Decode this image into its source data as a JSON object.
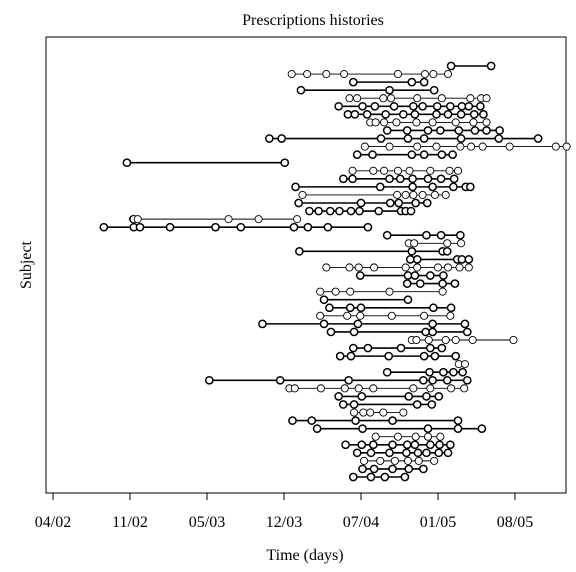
{
  "chart_data": {
    "type": "scatter",
    "title": "Prescriptions histories",
    "xlabel": "Time (days)",
    "ylabel": "Subject",
    "x_ticks": [
      "04/02",
      "11/02",
      "05/03",
      "12/03",
      "07/04",
      "01/05",
      "08/05"
    ],
    "xlim": [
      -0.05,
      7.4
    ],
    "ylim": [
      0,
      55
    ],
    "grid": false,
    "legend": "none",
    "marker": "open-circle",
    "colors": {
      "line": "#000000",
      "marker_fill": "#ffffff",
      "marker_stroke": "#000000"
    },
    "series": [
      {
        "y": 54,
        "x": [
          5.17,
          5.69
        ]
      },
      {
        "y": 53,
        "x": [
          3.1,
          3.3,
          3.55,
          3.78,
          4.48,
          4.83,
          4.94,
          5.13
        ]
      },
      {
        "y": 52,
        "x": [
          3.9,
          4.66,
          4.82
        ]
      },
      {
        "y": 51,
        "x": [
          3.22,
          4.37,
          4.95
        ]
      },
      {
        "y": 50,
        "x": [
          3.85,
          3.95,
          4.29,
          4.39,
          4.73,
          5.05,
          5.42,
          5.56,
          5.63
        ]
      },
      {
        "y": 49,
        "x": [
          3.71,
          4.02,
          4.18,
          4.43,
          4.68,
          4.8,
          4.99,
          5.16,
          5.31,
          5.4,
          5.55
        ]
      },
      {
        "y": 48,
        "x": [
          3.83,
          3.92,
          4.08,
          4.32,
          4.55,
          4.7,
          4.98,
          5.13,
          5.3,
          5.47,
          5.59
        ]
      },
      {
        "y": 47,
        "x": [
          4.12,
          4.19,
          4.3,
          4.46,
          4.72,
          4.93,
          5.23,
          5.46,
          5.63
        ]
      },
      {
        "y": 46,
        "x": [
          4.34,
          4.6,
          4.87,
          5.03,
          5.27,
          5.48,
          5.63,
          5.8
        ]
      },
      {
        "y": 45,
        "x": [
          2.81,
          2.97,
          4.26,
          4.61,
          4.82,
          5.3,
          5.79,
          6.3
        ]
      },
      {
        "y": 44,
        "x": [
          4.05,
          4.37,
          4.73,
          4.98,
          5.29,
          5.43,
          5.58,
          5.93,
          6.53,
          6.67
        ]
      },
      {
        "y": 43,
        "x": [
          3.95,
          4.15,
          4.66,
          4.82,
          5.05,
          5.19
        ]
      },
      {
        "y": 42,
        "x": [
          0.96,
          3.01
        ]
      },
      {
        "y": 41,
        "x": [
          3.89,
          4.16,
          4.3,
          4.48,
          4.63,
          4.9,
          5.15,
          5.26
        ]
      },
      {
        "y": 40,
        "x": [
          3.77,
          3.89,
          4.37,
          4.51,
          4.67,
          4.87,
          5.04,
          5.21
        ]
      },
      {
        "y": 39,
        "x": [
          3.15,
          4.25,
          4.67,
          4.93,
          5.2,
          5.36,
          5.42
        ]
      },
      {
        "y": 38,
        "x": [
          3.24,
          4.47,
          4.58,
          4.68,
          4.8,
          4.96,
          5.1
        ]
      },
      {
        "y": 37,
        "x": [
          3.19,
          4.0,
          4.38,
          4.49,
          4.71,
          4.86
        ]
      },
      {
        "y": 36,
        "x": [
          3.33,
          3.45,
          3.6,
          3.72,
          3.87,
          3.98,
          4.23,
          4.52,
          4.58,
          4.65
        ]
      },
      {
        "y": 35,
        "x": [
          1.04,
          1.05,
          1.1,
          2.28,
          2.67,
          3.17
        ]
      },
      {
        "y": 34,
        "x": [
          0.66,
          1.05,
          1.13,
          1.52,
          2.11,
          2.44,
          3.13,
          3.31,
          3.57,
          4.09
        ]
      },
      {
        "y": 33,
        "x": [
          4.34,
          4.85,
          5.04,
          5.29
        ]
      },
      {
        "y": 32,
        "x": [
          4.62,
          4.69,
          5.12,
          5.3
        ]
      },
      {
        "y": 31,
        "x": [
          3.2,
          4.66,
          5.06,
          5.12
        ]
      },
      {
        "y": 30,
        "x": [
          4.64,
          4.73,
          5.25,
          5.31,
          5.4
        ]
      },
      {
        "y": 29,
        "x": [
          3.55,
          3.85,
          3.97,
          4.17,
          4.58,
          4.73,
          5.0,
          5.13,
          5.28,
          5.4
        ]
      },
      {
        "y": 28,
        "x": [
          3.99,
          4.61,
          4.7,
          4.9,
          5.07
        ]
      },
      {
        "y": 27,
        "x": [
          4.6,
          4.77,
          5.06,
          5.22
        ]
      },
      {
        "y": 26,
        "x": [
          3.47,
          3.67,
          3.86,
          4.37,
          5.06
        ]
      },
      {
        "y": 25,
        "x": [
          3.52,
          4.61
        ]
      },
      {
        "y": 24,
        "x": [
          3.59,
          3.86,
          4.0,
          4.94,
          5.17
        ]
      },
      {
        "y": 23,
        "x": [
          3.47,
          3.82,
          3.99,
          4.4,
          4.82,
          5.16
        ]
      },
      {
        "y": 22,
        "x": [
          2.72,
          3.52,
          3.96,
          4.93,
          5.35
        ]
      },
      {
        "y": 21,
        "x": [
          3.61,
          3.91,
          4.84,
          4.93,
          5.38
        ]
      },
      {
        "y": 20,
        "x": [
          4.66,
          4.72,
          4.88,
          5.1,
          5.23,
          5.45,
          5.98
        ]
      },
      {
        "y": 19,
        "x": [
          3.9,
          4.09,
          4.52,
          4.9,
          5.05
        ]
      },
      {
        "y": 18,
        "x": [
          3.73,
          3.87,
          4.36,
          4.82,
          4.96,
          5.23
        ]
      },
      {
        "y": 17,
        "x": [
          5.27,
          5.35
        ]
      },
      {
        "y": 16,
        "x": [
          4.34,
          4.89,
          5.07,
          5.2,
          5.32
        ]
      },
      {
        "y": 15,
        "x": [
          2.03,
          2.95,
          3.84,
          4.81,
          4.93,
          5.12,
          5.38
        ]
      },
      {
        "y": 14,
        "x": [
          3.07,
          3.14,
          3.48,
          3.79,
          3.97,
          4.16,
          4.68,
          4.9,
          5.17,
          5.34
        ]
      },
      {
        "y": 13,
        "x": [
          3.71,
          4.01,
          4.62,
          4.85,
          5.01
        ]
      },
      {
        "y": 12,
        "x": [
          3.77,
          3.91,
          4.73,
          4.92
        ]
      },
      {
        "y": 11,
        "x": [
          3.91,
          4.03,
          4.12,
          4.29,
          4.55
        ]
      },
      {
        "y": 10,
        "x": [
          3.11,
          3.36,
          3.93,
          4.41,
          5.26
        ]
      },
      {
        "y": 9,
        "x": [
          3.43,
          4.02,
          4.87,
          5.26,
          5.57
        ]
      },
      {
        "y": 8,
        "x": [
          4.19,
          4.48,
          4.71,
          4.87,
          5.03
        ]
      },
      {
        "y": 7,
        "x": [
          3.8,
          4.01,
          4.16,
          4.41,
          4.6,
          4.7,
          4.9,
          5.02,
          5.16
        ]
      },
      {
        "y": 6,
        "x": [
          3.95,
          4.13,
          4.37,
          4.59,
          4.74,
          4.85,
          5.01,
          5.13
        ]
      },
      {
        "y": 5,
        "x": [
          4.04,
          4.25,
          4.44,
          4.61,
          4.75,
          4.95
        ]
      },
      {
        "y": 4,
        "x": [
          4.02,
          4.17,
          4.41,
          4.62,
          4.81
        ]
      },
      {
        "y": 3,
        "x": [
          3.9,
          4.13,
          4.31,
          4.57
        ]
      }
    ]
  }
}
